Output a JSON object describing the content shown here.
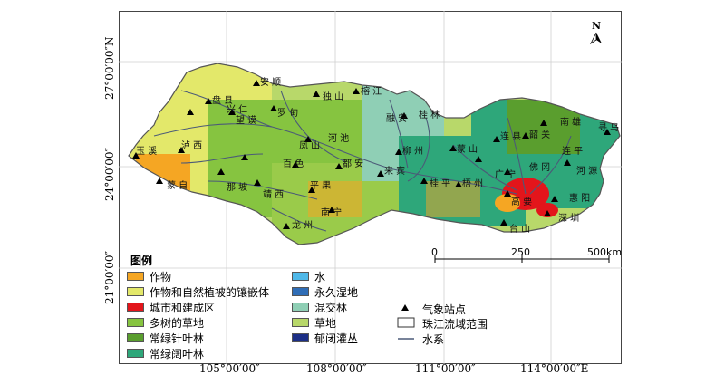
{
  "north_label": "N",
  "coords": {
    "x": [
      "105°00′00″",
      "108°00′00″",
      "111°00′00″",
      "114°00′00″E"
    ],
    "y": [
      "27°00′00″N",
      "24°00′00″",
      "21°00′00″"
    ]
  },
  "scale": {
    "ticks": [
      "0",
      "250",
      "500km"
    ]
  },
  "legend": {
    "title": "图例",
    "land_cover": [
      {
        "label": "作物",
        "color": "#f5a623"
      },
      {
        "label": "作物和自然植被的镶嵌体",
        "color": "#e3e86a"
      },
      {
        "label": "城市和建成区",
        "color": "#e3151b"
      },
      {
        "label": "多树的草地",
        "color": "#86c440"
      },
      {
        "label": "常绿针叶林",
        "color": "#5a9e2e"
      },
      {
        "label": "常绿阔叶林",
        "color": "#2ea77a"
      },
      {
        "label": "水",
        "color": "#4fb8e8"
      },
      {
        "label": "永久湿地",
        "color": "#2f6db6"
      },
      {
        "label": "混交林",
        "color": "#8fcfb5"
      },
      {
        "label": "草地",
        "color": "#b8d86a"
      },
      {
        "label": "郁闭灌丛",
        "color": "#1c2f86"
      }
    ],
    "symbols": [
      {
        "label": "气象站点",
        "icon": "triangle-station-icon"
      },
      {
        "label": "珠江流域范围",
        "icon": "boundary-box-icon"
      },
      {
        "label": "水系",
        "icon": "river-line-icon"
      }
    ]
  },
  "place_labels": [
    {
      "text": "安 顺"
    },
    {
      "text": "独 山"
    },
    {
      "text": "榕 江"
    },
    {
      "text": "盘 县"
    },
    {
      "text": "兴 仁"
    },
    {
      "text": "望 谟"
    },
    {
      "text": "罗 甸"
    },
    {
      "text": "融 安"
    },
    {
      "text": "桂 林"
    },
    {
      "text": "南 雄"
    },
    {
      "text": "韶 关"
    },
    {
      "text": "连 县"
    },
    {
      "text": "佛 冈"
    },
    {
      "text": "寻 乌"
    },
    {
      "text": "河 池"
    },
    {
      "text": "柳 州"
    },
    {
      "text": "蒙 山"
    },
    {
      "text": "连 平"
    },
    {
      "text": "玉 溪"
    },
    {
      "text": "泸 西"
    },
    {
      "text": "凤 山"
    },
    {
      "text": "百 色"
    },
    {
      "text": "都 安"
    },
    {
      "text": "来 宾"
    },
    {
      "text": "桂 平"
    },
    {
      "text": "梧 州"
    },
    {
      "text": "广 宁"
    },
    {
      "text": "河 源"
    },
    {
      "text": "蒙 自"
    },
    {
      "text": "那 坡"
    },
    {
      "text": "靖 西"
    },
    {
      "text": "平 果"
    },
    {
      "text": "南 宁"
    },
    {
      "text": "龙 州"
    },
    {
      "text": "高 要"
    },
    {
      "text": "惠 阳"
    },
    {
      "text": "深 圳"
    },
    {
      "text": "台 山"
    }
  ]
}
